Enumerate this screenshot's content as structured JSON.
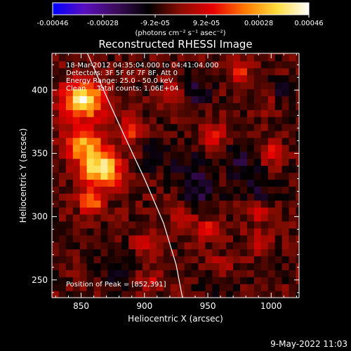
{
  "chart_data": {
    "type": "heatmap",
    "title": "Reconstructed RHESSI Image",
    "xlabel": "Heliocentric X (arcsec)",
    "ylabel": "Heliocentric Y (arcsec)",
    "xlim": [
      827,
      1022
    ],
    "ylim": [
      236,
      429
    ],
    "x_ticks": [
      850,
      900,
      950,
      1000
    ],
    "y_ticks": [
      250,
      300,
      350,
      400
    ],
    "colorbar": {
      "min": -0.00046,
      "max": 0.00046,
      "tick_values": [
        -0.00046,
        -0.00028,
        -9.2e-05,
        9.2e-05,
        0.00028,
        0.00046
      ],
      "tick_labels": [
        "-0.00046",
        "-0.00028",
        "-9.2e-05",
        "9.2e-05",
        "0.00028",
        "0.00046"
      ],
      "unit_label": "(photons cm⁻² s⁻¹ asec⁻²)",
      "colormap": [
        "#0000ff",
        "#5a0fbe",
        "#3c0c5a",
        "#000000",
        "#8c0c00",
        "#e60000",
        "#ff7800",
        "#ffdc3c",
        "#ffffff"
      ]
    },
    "annotations": {
      "time_range": "18-Mar-2012 04:35:04.000 to 04:41:04.000",
      "detectors": "Detectors: 3F 5F 6F 7F 8F, Att 0",
      "energy_range": "Energy Range: 25.0 - 50.0 keV",
      "algorithm": "Clean     Total counts: 1.06E+04",
      "peak_position": "Position of Peak = [852,391]"
    },
    "peak": [
      852,
      391
    ],
    "limb_curve": [
      [
        855,
        429
      ],
      [
        870,
        395
      ],
      [
        885,
        362
      ],
      [
        900,
        330
      ],
      [
        915,
        295
      ],
      [
        925,
        262
      ],
      [
        930,
        236
      ]
    ],
    "bright_sources": [
      {
        "x": 852,
        "y": 392,
        "amp": 0.00046
      },
      {
        "x": 866,
        "y": 338,
        "amp": 0.00044
      },
      {
        "x": 852,
        "y": 358,
        "amp": 0.00032
      },
      {
        "x": 858,
        "y": 312,
        "amp": 0.0003
      },
      {
        "x": 890,
        "y": 370,
        "amp": 0.00024
      },
      {
        "x": 955,
        "y": 365,
        "amp": 0.00018
      },
      {
        "x": 975,
        "y": 415,
        "amp": 0.00018
      },
      {
        "x": 1000,
        "y": 350,
        "amp": 0.00016
      },
      {
        "x": 950,
        "y": 290,
        "amp": 0.00016
      },
      {
        "x": 990,
        "y": 305,
        "amp": 0.00016
      },
      {
        "x": 930,
        "y": 300,
        "amp": 0.00014
      },
      {
        "x": 990,
        "y": 280,
        "amp": 0.00015
      },
      {
        "x": 960,
        "y": 260,
        "amp": 0.00014
      },
      {
        "x": 905,
        "y": 250,
        "amp": 0.00012
      },
      {
        "x": 900,
        "y": 280,
        "amp": 0.00012
      },
      {
        "x": 1000,
        "y": 390,
        "amp": 0.00012
      },
      {
        "x": 925,
        "y": 400,
        "amp": 0.00012
      }
    ],
    "negative_regions": [
      {
        "x": 945,
        "y": 320,
        "amp": -0.00012
      },
      {
        "x": 990,
        "y": 320,
        "amp": -0.0001
      },
      {
        "x": 940,
        "y": 400,
        "amp": -0.00011
      },
      {
        "x": 1005,
        "y": 395,
        "amp": -0.0001
      },
      {
        "x": 880,
        "y": 260,
        "amp": -0.0001
      },
      {
        "x": 935,
        "y": 340,
        "amp": -8e-05
      },
      {
        "x": 975,
        "y": 345,
        "amp": -0.0001
      },
      {
        "x": 910,
        "y": 350,
        "amp": -8e-05
      },
      {
        "x": 960,
        "y": 250,
        "amp": -7e-05
      }
    ]
  },
  "footer": {
    "timestamp": "9-May-2022 11:03"
  }
}
